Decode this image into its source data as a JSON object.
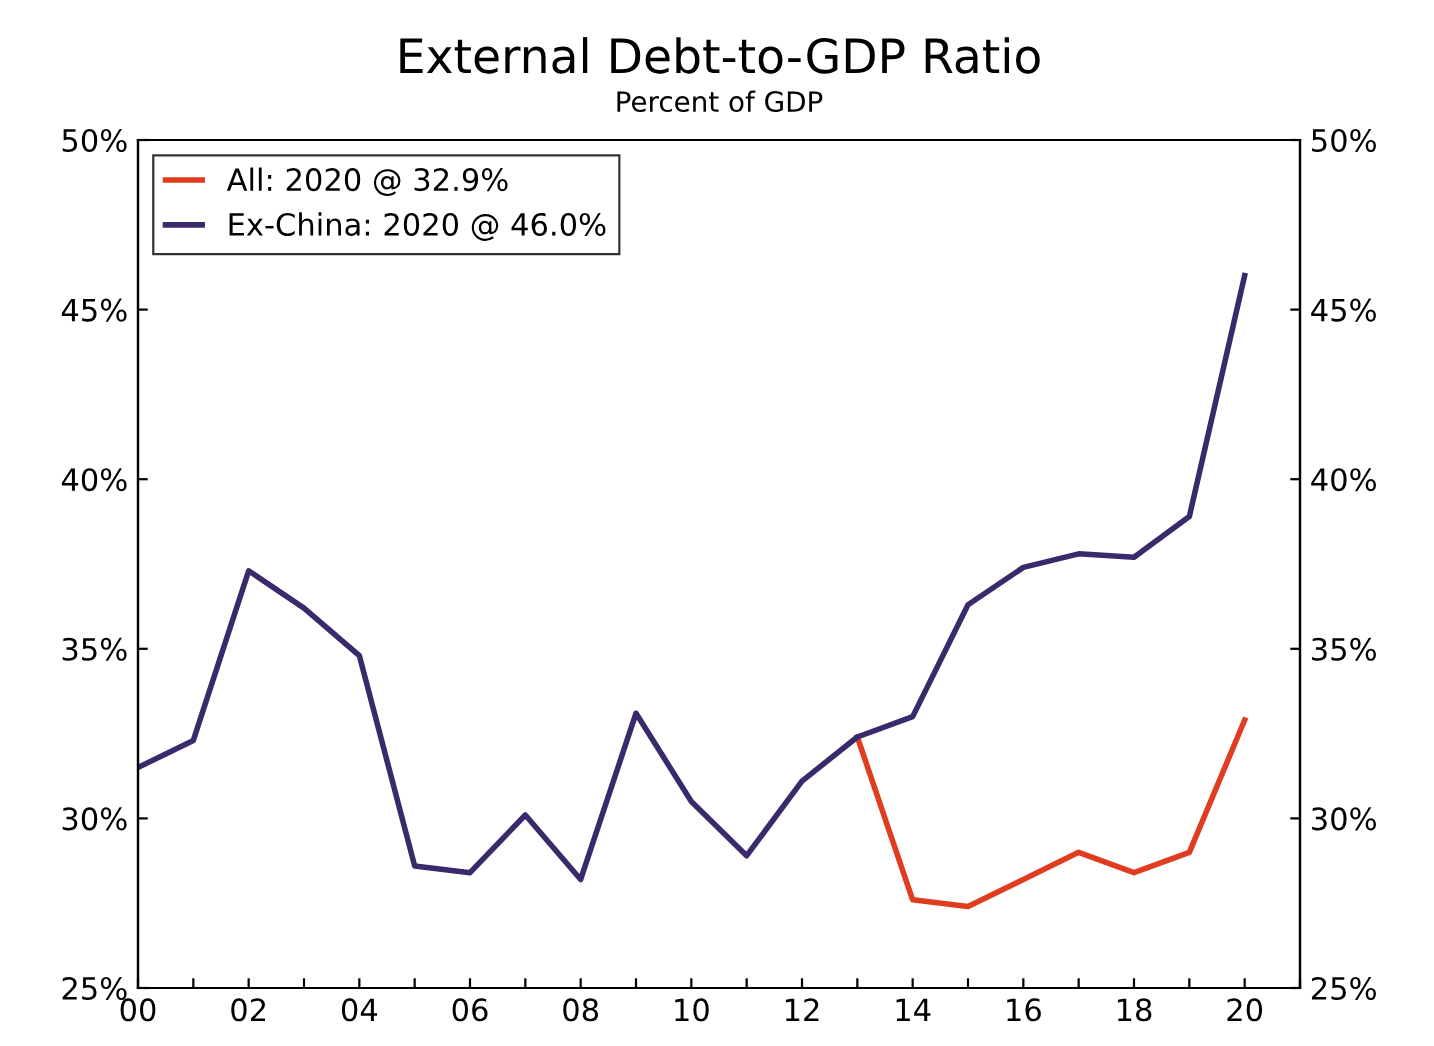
{
  "chart_data": {
    "type": "line",
    "title": "External Debt-to-GDP Ratio",
    "subtitle": "Percent of GDP",
    "x": [
      0,
      1,
      2,
      3,
      4,
      5,
      6,
      7,
      8,
      9,
      10,
      11,
      12,
      13,
      14,
      15,
      16,
      17,
      18,
      19,
      20
    ],
    "series": [
      {
        "name": "All: 2020 @ 32.9%",
        "color": "#e03c1f",
        "values": [
          null,
          null,
          null,
          null,
          null,
          null,
          null,
          null,
          null,
          null,
          null,
          null,
          null,
          32.4,
          27.6,
          27.4,
          28.2,
          29.0,
          28.4,
          29.0,
          32.9
        ]
      },
      {
        "name": "Ex-China: 2020 @ 46.0%",
        "color": "#3b2a6b",
        "values": [
          31.5,
          32.3,
          37.3,
          36.2,
          34.8,
          28.6,
          28.4,
          30.1,
          28.2,
          33.1,
          30.5,
          28.9,
          31.1,
          32.4,
          33.0,
          36.3,
          37.4,
          37.8,
          37.7,
          38.9,
          46.0
        ]
      }
    ],
    "xlim": [
      0,
      21
    ],
    "xticks": [
      {
        "value": 0,
        "label": "00"
      },
      {
        "value": 1,
        "label": null
      },
      {
        "value": 2,
        "label": "02"
      },
      {
        "value": 3,
        "label": null
      },
      {
        "value": 4,
        "label": "04"
      },
      {
        "value": 5,
        "label": null
      },
      {
        "value": 6,
        "label": "06"
      },
      {
        "value": 7,
        "label": null
      },
      {
        "value": 8,
        "label": "08"
      },
      {
        "value": 9,
        "label": null
      },
      {
        "value": 10,
        "label": "10"
      },
      {
        "value": 11,
        "label": null
      },
      {
        "value": 12,
        "label": "12"
      },
      {
        "value": 13,
        "label": null
      },
      {
        "value": 14,
        "label": "14"
      },
      {
        "value": 15,
        "label": null
      },
      {
        "value": 16,
        "label": "16"
      },
      {
        "value": 17,
        "label": null
      },
      {
        "value": 18,
        "label": "18"
      },
      {
        "value": 19,
        "label": null
      },
      {
        "value": 20,
        "label": "20"
      },
      {
        "value": 21,
        "label": null
      }
    ],
    "ylim": [
      25,
      50
    ],
    "yticks": [
      {
        "value": 25,
        "label": "25%"
      },
      {
        "value": 30,
        "label": "30%"
      },
      {
        "value": 35,
        "label": "35%"
      },
      {
        "value": 40,
        "label": "40%"
      },
      {
        "value": 45,
        "label": "45%"
      },
      {
        "value": 50,
        "label": "50%"
      }
    ],
    "y2lim": [
      25,
      50
    ],
    "y2ticks": [
      {
        "value": 25,
        "label": "25%"
      },
      {
        "value": 30,
        "label": "30%"
      },
      {
        "value": 35,
        "label": "35%"
      },
      {
        "value": 40,
        "label": "40%"
      },
      {
        "value": 45,
        "label": "45%"
      },
      {
        "value": 50,
        "label": "50%"
      }
    ],
    "grid": false,
    "legend": "top left",
    "marker": "none",
    "line_style": "solid"
  }
}
